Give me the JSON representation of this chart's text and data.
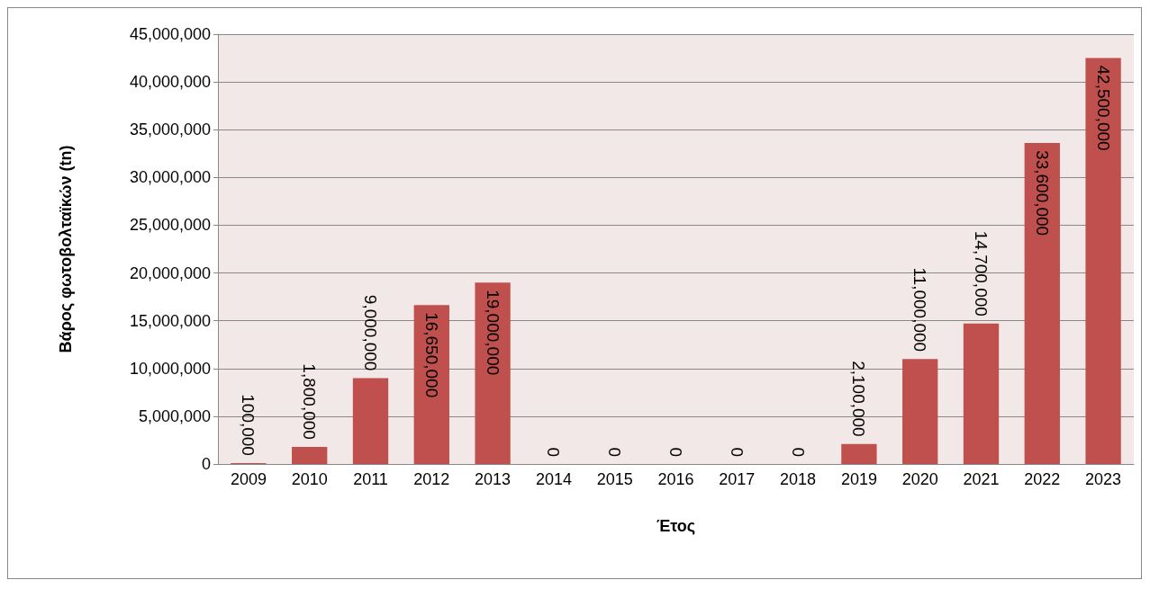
{
  "chart_data": {
    "type": "bar",
    "xlabel": "Έτος",
    "ylabel": "Βάρος φωτοβολταϊκών (tn)",
    "categories": [
      "2009",
      "2010",
      "2011",
      "2012",
      "2013",
      "2014",
      "2015",
      "2016",
      "2017",
      "2018",
      "2019",
      "2020",
      "2021",
      "2022",
      "2023"
    ],
    "values": [
      100000,
      1800000,
      9000000,
      16650000,
      19000000,
      0,
      0,
      0,
      0,
      0,
      2100000,
      11000000,
      14700000,
      33600000,
      42500000
    ],
    "value_labels": [
      "100,000",
      "1,800,000",
      "9,000,000",
      "16,650,000",
      "19,000,000",
      "0",
      "0",
      "0",
      "0",
      "0",
      "2,100,000",
      "11,000,000",
      "14,700,000",
      "33,600,000",
      "42,500,000"
    ],
    "color": "#c0504d",
    "ylim": [
      0,
      45000000
    ],
    "yticks": [
      {
        "value": 0,
        "label": "0"
      },
      {
        "value": 5000000,
        "label": "5,000,000"
      },
      {
        "value": 10000000,
        "label": "10,000,000"
      },
      {
        "value": 15000000,
        "label": "15,000,000"
      },
      {
        "value": 20000000,
        "label": "20,000,000"
      },
      {
        "value": 25000000,
        "label": "25,000,000"
      },
      {
        "value": 30000000,
        "label": "30,000,000"
      },
      {
        "value": 35000000,
        "label": "35,000,000"
      },
      {
        "value": 40000000,
        "label": "40,000,000"
      },
      {
        "value": 45000000,
        "label": "45,000,000"
      }
    ],
    "grid": "y"
  }
}
